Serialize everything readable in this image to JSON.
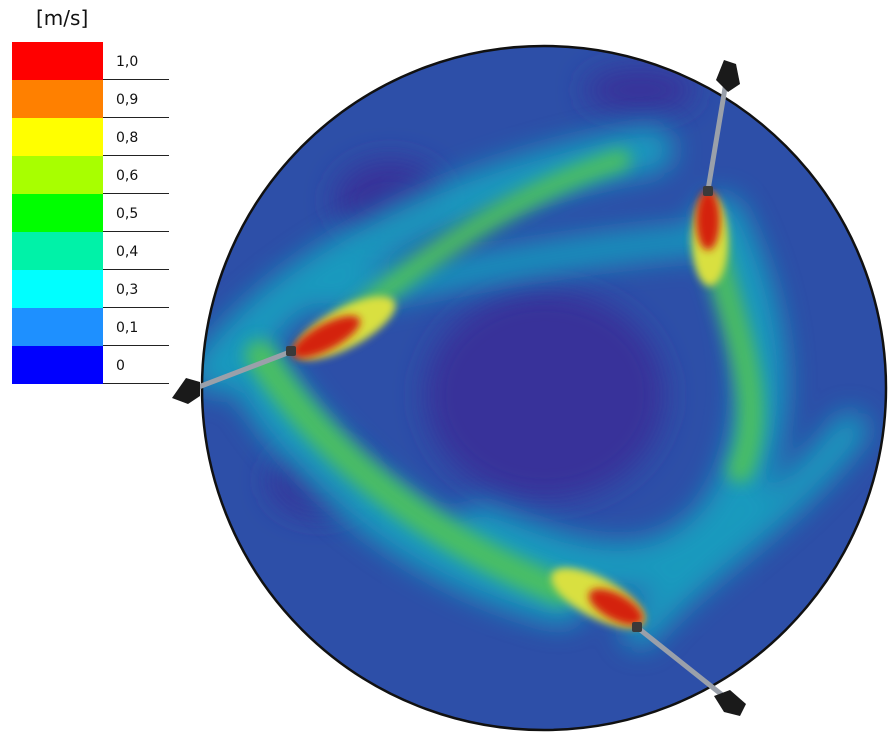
{
  "legend": {
    "unit": "[m/s]",
    "items": [
      {
        "label": "1,0",
        "color": "#ff0000"
      },
      {
        "label": "0,9",
        "color": "#ff8000"
      },
      {
        "label": "0,8",
        "color": "#ffff00"
      },
      {
        "label": "0,6",
        "color": "#a8ff00"
      },
      {
        "label": "0,5",
        "color": "#00ff00"
      },
      {
        "label": "0,4",
        "color": "#00f2a8"
      },
      {
        "label": "0,3",
        "color": "#00ffff"
      },
      {
        "label": "0,1",
        "color": "#1e90ff"
      },
      {
        "label": "0",
        "color": "#0000ff"
      }
    ]
  },
  "colors": {
    "background_flow": "#2d4fa8",
    "low_zone": "#38319a",
    "outline": "#111111",
    "nozzle_pipe": "#9aa0aa"
  },
  "nozzles": [
    {
      "name": "top-right"
    },
    {
      "name": "left"
    },
    {
      "name": "bottom"
    }
  ]
}
